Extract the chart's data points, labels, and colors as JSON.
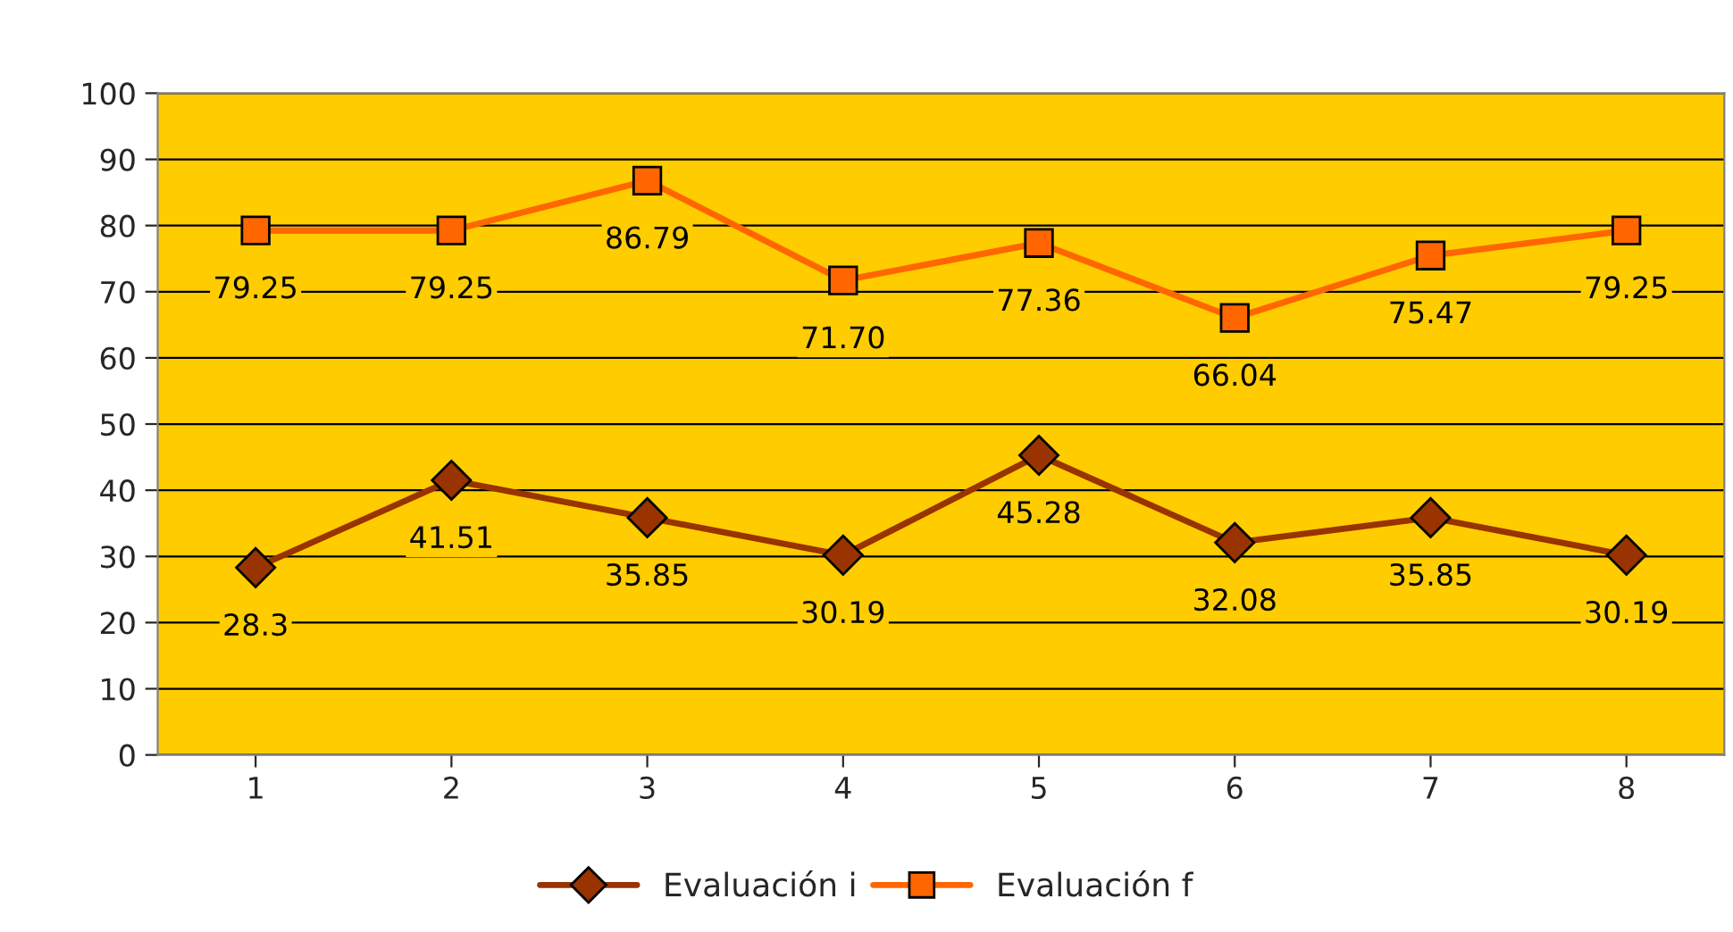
{
  "chart_data": {
    "type": "line",
    "categories": [
      "1",
      "2",
      "3",
      "4",
      "5",
      "6",
      "7",
      "8"
    ],
    "series": [
      {
        "name": "Evaluación i",
        "color": "#993300",
        "marker": "diamond",
        "values": [
          28.3,
          41.51,
          35.85,
          30.19,
          45.28,
          32.08,
          35.85,
          30.19
        ],
        "value_labels": [
          "28.3",
          "41.51",
          "35.85",
          "30.19",
          "45.28",
          "32.08",
          "35.85",
          "30.19"
        ]
      },
      {
        "name": "Evaluación f",
        "color": "#ff6600",
        "marker": "square",
        "values": [
          79.25,
          79.25,
          86.79,
          71.7,
          77.36,
          66.04,
          75.47,
          79.25
        ],
        "value_labels": [
          "79.25",
          "79.25",
          "86.79",
          "71.70",
          "77.36",
          "66.04",
          "75.47",
          "79.25"
        ]
      }
    ],
    "ylim": [
      0,
      100
    ],
    "yticks": [
      0,
      10,
      20,
      30,
      40,
      50,
      60,
      70,
      80,
      90,
      100
    ],
    "grid": "y",
    "legend": "bottom",
    "line_style": "solid"
  }
}
